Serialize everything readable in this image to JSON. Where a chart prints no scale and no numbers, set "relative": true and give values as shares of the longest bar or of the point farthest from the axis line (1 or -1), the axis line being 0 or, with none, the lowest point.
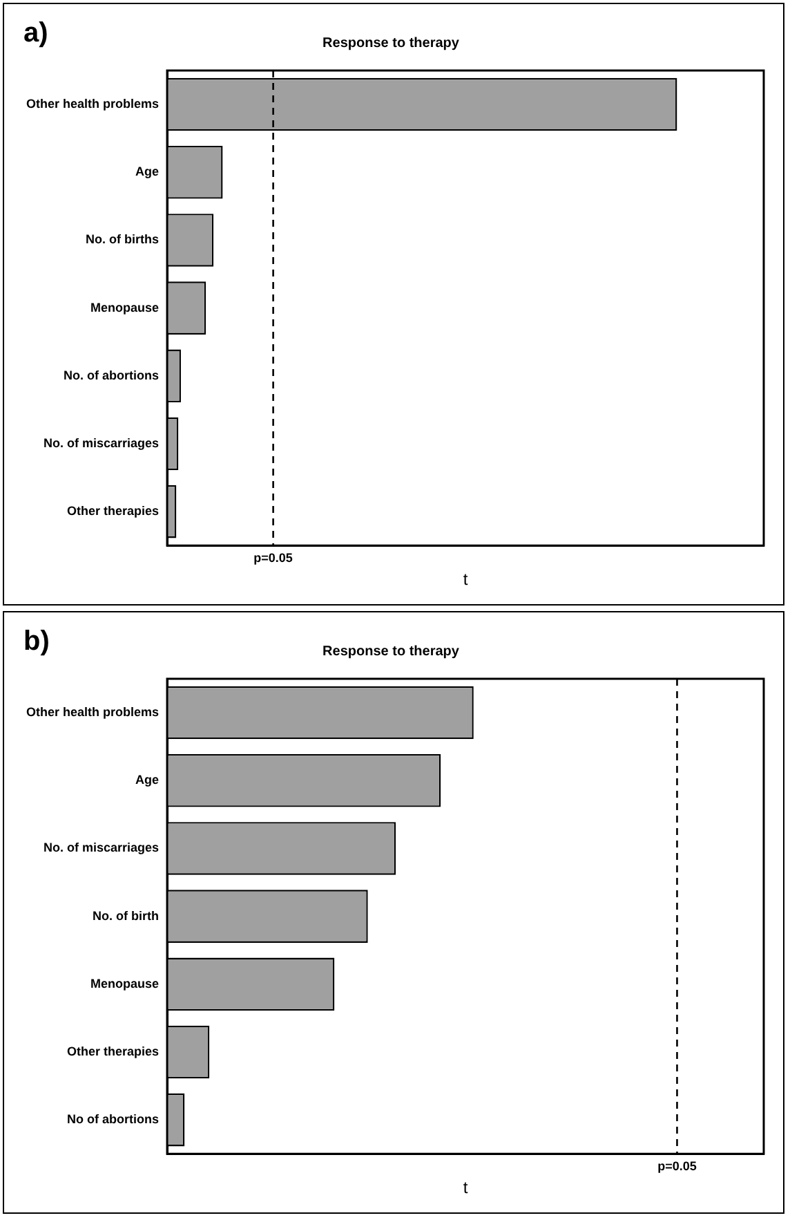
{
  "chart_data": [
    {
      "type": "bar",
      "orientation": "horizontal",
      "relative": true,
      "title": "Response to therapy",
      "xlabel": "t",
      "annotations": [
        "a)",
        "p=0.05"
      ],
      "categories": [
        "Other health problems",
        "Age",
        "No. of births",
        "Menopause",
        "No. of abortions",
        "No. of miscarriages",
        "Other therapies"
      ],
      "values": [
        1,
        0.109,
        0.091,
        0.076,
        0.027,
        0.022,
        0.018
      ],
      "color": "#a0a0a0",
      "ref_lines": [
        {
          "axis": "x",
          "value": 0.208,
          "line_style": "dashed",
          "color": "#000000"
        }
      ],
      "grid": false,
      "legend": false
    },
    {
      "type": "bar",
      "orientation": "horizontal",
      "relative": true,
      "title": "Response to therapy",
      "xlabel": "t",
      "annotations": [
        "b)",
        "p=0.05"
      ],
      "categories": [
        "Other health problems",
        "Age",
        "No. of miscarriages",
        "No. of birth",
        "Menopause",
        "Other therapies",
        "No of abortions"
      ],
      "values": [
        1,
        0.893,
        0.746,
        0.655,
        0.546,
        0.138,
        0.057
      ],
      "color": "#a0a0a0",
      "ref_lines": [
        {
          "axis": "x",
          "value": 1.664,
          "line_style": "dashed",
          "color": "#000000"
        }
      ],
      "grid": false,
      "legend": false
    }
  ]
}
